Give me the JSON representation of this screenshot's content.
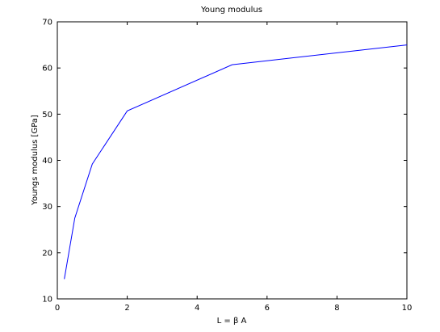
{
  "chart_data": {
    "type": "line",
    "title": "Young modulus",
    "xlabel": "L = β A",
    "ylabel": "Youngs modulus [GPa]",
    "xlim": [
      0,
      10
    ],
    "ylim": [
      10,
      70
    ],
    "x_ticks": [
      0,
      2,
      4,
      6,
      8,
      10
    ],
    "y_ticks": [
      10,
      20,
      30,
      40,
      50,
      60,
      70
    ],
    "grid": false,
    "legend": "none",
    "series": [
      {
        "color": "#0000ff",
        "x": [
          0.2,
          0.5,
          1,
          2,
          5,
          10
        ],
        "y": [
          14.3,
          27.5,
          39.2,
          50.7,
          60.7,
          65.0
        ]
      }
    ]
  }
}
